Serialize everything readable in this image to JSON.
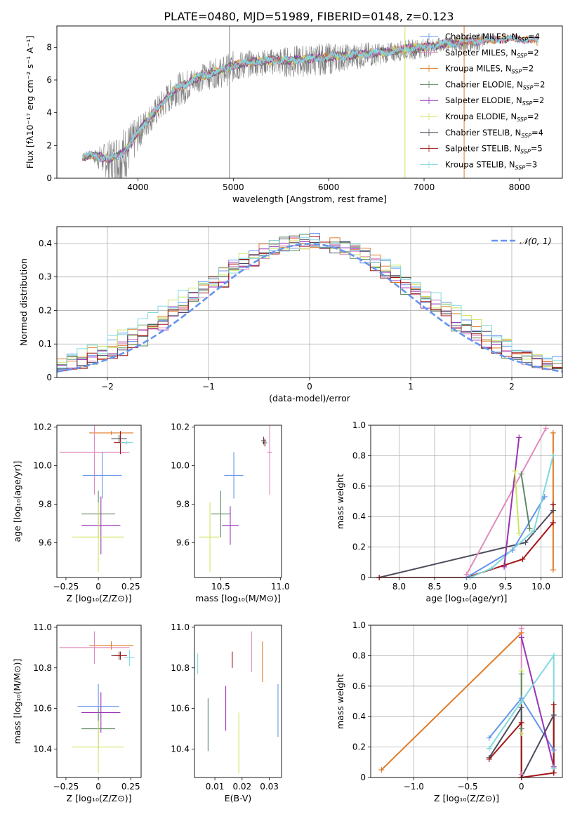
{
  "title": "PLATE=0480, MJD=51989, FIBERID=0148, z=0.123",
  "colors": {
    "chabrier_miles": "#6495ed",
    "salpeter_miles": "#e08cbd",
    "kroupa_miles": "#e07b28",
    "chabrier_elodie": "#5e8a62",
    "salpeter_elodie": "#9a33b7",
    "kroupa_elodie": "#cde661",
    "chabrier_stelib": "#4d4d5e",
    "salpeter_stelib": "#a31515",
    "kroupa_stelib": "#80d9dd",
    "data": "#808080",
    "normal": "#6495ed"
  },
  "chart_data": [
    {
      "id": "spectrum",
      "type": "line",
      "xlabel": "wavelength [Angstrom, rest frame]",
      "ylabel": "Flux [fλ10⁻¹⁷ erg cm⁻² s⁻¹ A⁻¹]",
      "xlim": [
        3150,
        8450
      ],
      "ylim": [
        0,
        9.3
      ],
      "xticks": [
        4000,
        5000,
        6000,
        7000,
        8000
      ],
      "yticks": [
        0,
        2,
        4,
        6,
        8
      ],
      "legend_position": "top-right",
      "legend": [
        {
          "key": "chabrier_miles",
          "label": "Chabrier MILES, N",
          "sub": "SSP",
          "tail": "=4"
        },
        {
          "key": "salpeter_miles",
          "label": "Salpeter MILES, N",
          "sub": "SSP",
          "tail": "=2"
        },
        {
          "key": "kroupa_miles",
          "label": "Kroupa MILES, N",
          "sub": "SSP",
          "tail": "=2"
        },
        {
          "key": "chabrier_elodie",
          "label": "Chabrier ELODIE, N",
          "sub": "SSP",
          "tail": "=2"
        },
        {
          "key": "salpeter_elodie",
          "label": "Salpeter ELODIE, N",
          "sub": "SSP",
          "tail": "=2"
        },
        {
          "key": "kroupa_elodie",
          "label": "Kroupa ELODIE, N",
          "sub": "SSP",
          "tail": "=2"
        },
        {
          "key": "chabrier_stelib",
          "label": "Chabrier STELIB, N",
          "sub": "SSP",
          "tail": "=4"
        },
        {
          "key": "salpeter_stelib",
          "label": "Salpeter STELIB, N",
          "sub": "SSP",
          "tail": "=5"
        },
        {
          "key": "kroupa_stelib",
          "label": "Kroupa STELIB, N",
          "sub": "SSP",
          "tail": "=3"
        }
      ],
      "model_continuum": {
        "x": [
          3420,
          3500,
          3600,
          3700,
          3800,
          3900,
          4000,
          4100,
          4200,
          4300,
          4400,
          4500,
          4600,
          4700,
          4800,
          4900,
          5000,
          5200,
          5400,
          5600,
          5800,
          6000,
          6200,
          6400,
          6600,
          6800,
          7000,
          7200,
          7400,
          7600,
          7800,
          8000,
          8200
        ],
        "y": [
          1.3,
          1.4,
          1.3,
          1.2,
          1.4,
          1.9,
          2.8,
          3.6,
          4.2,
          4.9,
          5.5,
          5.7,
          6.1,
          6.3,
          6.5,
          6.6,
          6.9,
          7.1,
          7.2,
          7.2,
          7.3,
          7.4,
          7.5,
          7.6,
          7.7,
          7.9,
          8.0,
          8.2,
          8.3,
          8.4,
          8.5,
          8.5,
          8.4
        ]
      },
      "data_envelope": {
        "x": [
          3420,
          3500,
          3600,
          3700,
          3800,
          3900,
          4000,
          4100,
          4200,
          4300,
          4400,
          4500,
          4600,
          4700,
          4800,
          4900,
          5000,
          5200,
          5400,
          5600,
          5800,
          6000,
          6200,
          6400,
          6600,
          6800,
          7000,
          7200,
          7400,
          7600
        ],
        "y": [
          1.5,
          1.6,
          2.2,
          2.6,
          3.5,
          3.7,
          4.0,
          4.6,
          5.2,
          6.0,
          6.6,
          6.9,
          7.0,
          7.3,
          7.5,
          7.7,
          8.0,
          8.0,
          8.1,
          8.3,
          8.4,
          8.5,
          8.4,
          8.5,
          8.4,
          8.6,
          8.7,
          8.7,
          8.9,
          9.0
        ]
      },
      "dropouts": [
        {
          "key": "data",
          "x": 4960
        },
        {
          "key": "kroupa_elodie",
          "x": 6800
        },
        {
          "key": "kroupa_miles",
          "x": 7420
        }
      ]
    },
    {
      "id": "residuals",
      "type": "bar",
      "xlabel": "(data-model)/error",
      "ylabel": "Normed distribution",
      "xlim": [
        -2.5,
        2.5
      ],
      "ylim": [
        0,
        0.45
      ],
      "xticks": [
        -2,
        -1,
        0,
        1,
        2
      ],
      "yticks": [
        0.0,
        0.1,
        0.2,
        0.3,
        0.4
      ],
      "grid": true,
      "legend_position": "top-right",
      "normal_label": "𝒩(0, 1)",
      "bin_width": 0.1
    },
    {
      "id": "z-age",
      "type": "scatter",
      "xlabel": "Z [log₁₀(Z/Z⊙)]",
      "ylabel": "age  [log₁₀(age/yr)]",
      "xlim": [
        -0.32,
        0.33
      ],
      "ylim": [
        9.42,
        10.21
      ],
      "xticks": [
        -0.25,
        0.0,
        0.25
      ],
      "yticks": [
        9.6,
        9.8,
        10.0,
        10.2
      ],
      "points": [
        {
          "key": "kroupa_miles",
          "x": 0.1,
          "xerr": 0.17,
          "y": 10.17,
          "yerr": 0.01
        },
        {
          "key": "salpeter_miles",
          "x": -0.03,
          "xerr": 0.27,
          "y": 10.07,
          "yerr": 0.22
        },
        {
          "key": "chabrier_miles",
          "x": 0.03,
          "xerr": 0.15,
          "y": 9.95,
          "yerr": 0.12
        },
        {
          "key": "chabrier_stelib",
          "x": 0.16,
          "xerr": 0.06,
          "y": 10.14,
          "yerr": 0.02
        },
        {
          "key": "salpeter_stelib",
          "x": 0.17,
          "xerr": 0.05,
          "y": 10.12,
          "yerr": 0.06
        },
        {
          "key": "kroupa_stelib",
          "x": 0.22,
          "xerr": 0.05,
          "y": 10.12,
          "yerr": 0.01
        },
        {
          "key": "chabrier_elodie",
          "x": 0.0,
          "xerr": 0.13,
          "y": 9.75,
          "yerr": 0.12
        },
        {
          "key": "salpeter_elodie",
          "x": 0.02,
          "xerr": 0.15,
          "y": 9.69,
          "yerr": 0.15
        },
        {
          "key": "kroupa_elodie",
          "x": 0.0,
          "xerr": 0.2,
          "y": 9.63,
          "yerr": 0.18
        }
      ]
    },
    {
      "id": "mass-age",
      "type": "scatter",
      "xlabel": "mass [log₁₀(M/M⊙)]",
      "ylabel": "",
      "xlim": [
        10.28,
        11.01
      ],
      "ylim": [
        9.42,
        10.21
      ],
      "xticks": [
        10.5,
        11.0
      ],
      "yticks": [
        9.6,
        9.8,
        10.0,
        10.2
      ],
      "points": [
        {
          "key": "salpeter_miles",
          "x": 10.91,
          "xerr": 0.02,
          "y": 10.07,
          "yerr": 0.22
        },
        {
          "key": "chabrier_miles",
          "x": 10.61,
          "xerr": 0.08,
          "y": 9.95,
          "yerr": 0.12
        },
        {
          "key": "chabrier_stelib",
          "x": 10.86,
          "xerr": 0.02,
          "y": 10.13,
          "yerr": 0.02
        },
        {
          "key": "salpeter_stelib",
          "x": 10.87,
          "xerr": 0.02,
          "y": 10.12,
          "yerr": 0.02
        },
        {
          "key": "kroupa_stelib",
          "x": 10.88,
          "xerr": 0.01,
          "y": 10.12,
          "yerr": 0.01
        },
        {
          "key": "chabrier_elodie",
          "x": 10.5,
          "xerr": 0.08,
          "y": 9.75,
          "yerr": 0.12
        },
        {
          "key": "salpeter_elodie",
          "x": 10.58,
          "xerr": 0.07,
          "y": 9.69,
          "yerr": 0.1
        },
        {
          "key": "kroupa_elodie",
          "x": 10.41,
          "xerr": 0.09,
          "y": 9.63,
          "yerr": 0.18
        }
      ]
    },
    {
      "id": "age-weight",
      "type": "line",
      "xlabel": "age  [log₁₀(age/yr)]",
      "ylabel": "mass weight",
      "xlim": [
        7.6,
        10.3
      ],
      "ylim": [
        0,
        1
      ],
      "xticks": [
        8.0,
        8.5,
        9.0,
        9.5,
        10.0
      ],
      "yticks": [
        0.0,
        0.2,
        0.4,
        0.6,
        0.8,
        1.0
      ],
      "grid": true,
      "series": [
        {
          "key": "chabrier_stelib",
          "x": [
            7.72,
            9.78,
            10.17,
            10.17
          ],
          "y": [
            0.0,
            0.23,
            0.44,
            0.48
          ]
        },
        {
          "key": "salpeter_stelib",
          "x": [
            7.72,
            8.95,
            9.48,
            9.74,
            10.17,
            10.17
          ],
          "y": [
            0.0,
            0.0,
            0.08,
            0.12,
            0.36,
            0.48
          ]
        },
        {
          "key": "chabrier_miles",
          "x": [
            8.95,
            9.6,
            10.05
          ],
          "y": [
            0.0,
            0.18,
            0.53
          ]
        },
        {
          "key": "salpeter_miles",
          "x": [
            8.95,
            10.07
          ],
          "y": [
            0.02,
            0.98
          ]
        },
        {
          "key": "kroupa_miles",
          "x": [
            10.17,
            10.17
          ],
          "y": [
            0.05,
            0.95
          ]
        },
        {
          "key": "kroupa_stelib",
          "x": [
            9.0,
            9.3,
            9.9,
            10.17
          ],
          "y": [
            0.0,
            0.06,
            0.31,
            0.8
          ]
        },
        {
          "key": "salpeter_elodie",
          "x": [
            9.48,
            9.69
          ],
          "y": [
            0.07,
            0.92
          ]
        },
        {
          "key": "chabrier_elodie",
          "x": [
            9.72,
            9.84
          ],
          "y": [
            0.68,
            0.32
          ]
        },
        {
          "key": "kroupa_elodie",
          "x": [
            9.63,
            9.69
          ],
          "y": [
            0.7,
            0.29
          ]
        }
      ]
    },
    {
      "id": "z-mass",
      "type": "scatter",
      "xlabel": "Z [log₁₀(Z/Z⊙)]",
      "ylabel": "mass [log₁₀(M/M⊙)]",
      "xlim": [
        -0.32,
        0.33
      ],
      "ylim": [
        10.26,
        11.01
      ],
      "xticks": [
        -0.25,
        0.0,
        0.25
      ],
      "yticks": [
        10.4,
        10.6,
        10.8,
        11.0
      ],
      "points": [
        {
          "key": "kroupa_miles",
          "x": 0.1,
          "xerr": 0.17,
          "y": 10.91,
          "yerr": 0.02
        },
        {
          "key": "salpeter_miles",
          "x": -0.03,
          "xerr": 0.27,
          "y": 10.9,
          "yerr": 0.08
        },
        {
          "key": "chabrier_stelib",
          "x": 0.16,
          "xerr": 0.06,
          "y": 10.86,
          "yerr": 0.02
        },
        {
          "key": "salpeter_stelib",
          "x": 0.17,
          "xerr": 0.05,
          "y": 10.86,
          "yerr": 0.02
        },
        {
          "key": "kroupa_stelib",
          "x": 0.24,
          "xerr": 0.04,
          "y": 10.85,
          "yerr": 0.04
        },
        {
          "key": "chabrier_miles",
          "x": 0.0,
          "xerr": 0.16,
          "y": 10.61,
          "yerr": 0.11
        },
        {
          "key": "salpeter_elodie",
          "x": 0.02,
          "xerr": 0.15,
          "y": 10.58,
          "yerr": 0.1
        },
        {
          "key": "chabrier_elodie",
          "x": 0.0,
          "xerr": 0.13,
          "y": 10.5,
          "yerr": 0.1
        },
        {
          "key": "kroupa_elodie",
          "x": 0.0,
          "xerr": 0.2,
          "y": 10.41,
          "yerr": 0.13
        }
      ]
    },
    {
      "id": "ebv-mass",
      "type": "scatter",
      "xlabel": "E(B-V)",
      "ylabel": "",
      "xlim": [
        0.0025,
        0.0345
      ],
      "ylim": [
        10.26,
        11.01
      ],
      "xticks": [
        0.01,
        0.02,
        0.03
      ],
      "yticks": [
        10.4,
        10.6,
        10.8,
        11.0
      ],
      "points": [
        {
          "key": "kroupa_stelib",
          "x": 0.0037,
          "xerr": 0,
          "y": 10.82,
          "yerr": 0.05
        },
        {
          "key": "chabrier_elodie",
          "x": 0.0075,
          "xerr": 0,
          "y": 10.52,
          "yerr": 0.13
        },
        {
          "key": "salpeter_elodie",
          "x": 0.014,
          "xerr": 0,
          "y": 10.6,
          "yerr": 0.11
        },
        {
          "key": "salpeter_stelib",
          "x": 0.0164,
          "xerr": 0,
          "y": 10.84,
          "yerr": 0.04
        },
        {
          "key": "kroupa_elodie",
          "x": 0.0188,
          "xerr": 0,
          "y": 10.43,
          "yerr": 0.15
        },
        {
          "key": "salpeter_miles",
          "x": 0.0235,
          "xerr": 0,
          "y": 10.88,
          "yerr": 0.1
        },
        {
          "key": "kroupa_miles",
          "x": 0.0275,
          "xerr": 0,
          "y": 10.83,
          "yerr": 0.1
        },
        {
          "key": "chabrier_miles",
          "x": 0.0332,
          "xerr": 0,
          "y": 10.59,
          "yerr": 0.13
        }
      ]
    },
    {
      "id": "z-weight",
      "type": "line",
      "xlabel": "Z [log₁₀(Z/Z⊙)]",
      "ylabel": "mass weight",
      "xlim": [
        -1.4,
        0.38
      ],
      "ylim": [
        0,
        1
      ],
      "xticks": [
        -1.0,
        -0.5,
        0.0
      ],
      "yticks": [
        0.0,
        0.2,
        0.4,
        0.6,
        0.8,
        1.0
      ],
      "grid": true,
      "series": [
        {
          "key": "kroupa_miles",
          "x": [
            -1.3,
            0.0
          ],
          "y": [
            0.05,
            0.95
          ]
        },
        {
          "key": "salpeter_miles",
          "x": [
            0.0,
            0.0
          ],
          "y": [
            0.98,
            0.02
          ]
        },
        {
          "key": "chabrier_miles",
          "x": [
            -0.3,
            0.0,
            0.3
          ],
          "y": [
            0.26,
            0.52,
            0.18
          ]
        },
        {
          "key": "salpeter_elodie",
          "x": [
            0.0,
            0.3
          ],
          "y": [
            0.92,
            0.07
          ]
        },
        {
          "key": "kroupa_elodie",
          "x": [
            0.0,
            0.0
          ],
          "y": [
            0.7,
            0.29
          ]
        },
        {
          "key": "chabrier_elodie",
          "x": [
            0.0,
            0.0
          ],
          "y": [
            0.68,
            0.32
          ]
        },
        {
          "key": "kroupa_stelib",
          "x": [
            -0.3,
            0.0,
            0.3,
            0.3
          ],
          "y": [
            0.19,
            0.5,
            0.8,
            0.06
          ]
        },
        {
          "key": "chabrier_stelib",
          "x": [
            -0.3,
            0.0,
            0.0,
            0.3,
            0.3
          ],
          "y": [
            0.13,
            0.46,
            0.0,
            0.41,
            0.03
          ]
        },
        {
          "key": "salpeter_stelib",
          "x": [
            -0.3,
            0.0,
            0.0,
            0.3,
            0.3
          ],
          "y": [
            0.12,
            0.36,
            0.0,
            0.03,
            0.48
          ]
        }
      ]
    }
  ]
}
